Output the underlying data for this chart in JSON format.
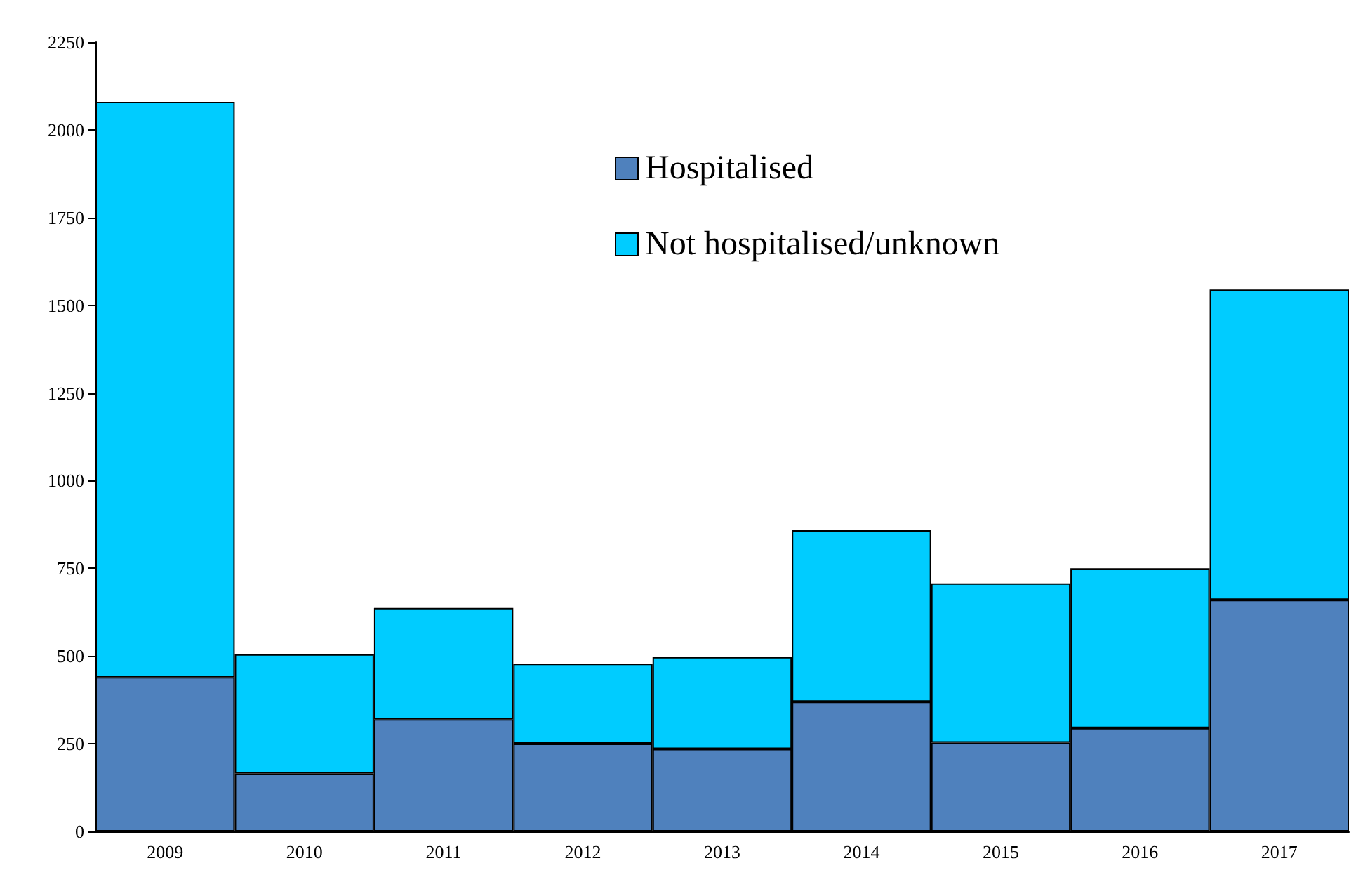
{
  "chart_data": {
    "type": "bar",
    "stacked": true,
    "categories": [
      "2009",
      "2010",
      "2011",
      "2012",
      "2013",
      "2014",
      "2015",
      "2016",
      "2017"
    ],
    "series": [
      {
        "name": "Hospitalised",
        "color": "#4f81bd",
        "values": [
          440,
          165,
          320,
          250,
          235,
          370,
          253,
          295,
          660
        ]
      },
      {
        "name": "Not hospitalised/unknown",
        "color": "#00ccff",
        "values": [
          1640,
          340,
          317,
          228,
          262,
          489,
          454,
          455,
          885
        ]
      }
    ],
    "ylim": [
      0,
      2250
    ],
    "yticks": [
      0,
      250,
      500,
      750,
      1000,
      1250,
      1500,
      1750,
      2000,
      2250
    ],
    "grid": false,
    "legend": "top"
  }
}
